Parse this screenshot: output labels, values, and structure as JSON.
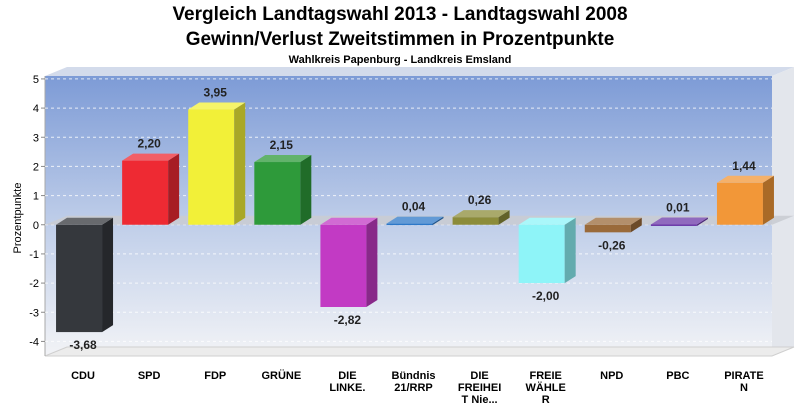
{
  "chart_data": {
    "type": "bar",
    "title": "Vergleich Landtagswahl 2013 - Landtagswahl 2008",
    "title2": "Gewinn/Verlust Zweitstimmen in Prozentpunkte",
    "subtitle": "Wahlkreis Papenburg - Landkreis Emsland",
    "ylabel": "Prozentpunkte",
    "xlabel": "",
    "ylim": [
      -4.5,
      5.1
    ],
    "yticks": [
      5,
      4,
      3,
      2,
      1,
      0,
      -1,
      -2,
      -3,
      -4
    ],
    "grid": true,
    "categories": [
      "CDU",
      "SPD",
      "FDP",
      "GRÜNE",
      "DIE LINKE.",
      "Bündnis 21/RRP",
      "DIE FREIHEIT Nie...",
      "FREIE WÄHLER",
      "NPD",
      "PBC",
      "PIRATEN"
    ],
    "category_label_lines": [
      [
        "CDU"
      ],
      [
        "SPD"
      ],
      [
        "FDP"
      ],
      [
        "GRÜNE"
      ],
      [
        "DIE",
        "LINKE."
      ],
      [
        "Bündnis",
        "21/RRP"
      ],
      [
        "DIE",
        "FREIHEI",
        "T Nie..."
      ],
      [
        "FREIE",
        "WÄHLE",
        "R"
      ],
      [
        "NPD"
      ],
      [
        "PBC"
      ],
      [
        "PIRATE",
        "N"
      ]
    ],
    "values": [
      -3.68,
      2.2,
      3.95,
      2.15,
      -2.82,
      0.04,
      0.26,
      -2.0,
      -0.26,
      0.01,
      1.44
    ],
    "value_labels": [
      "-3,68",
      "2,20",
      "3,95",
      "2,15",
      "-2,82",
      "0,04",
      "0,26",
      "-2,00",
      "-0,26",
      "0,01",
      "1,44"
    ],
    "colors": [
      "#35383d",
      "#ee2a33",
      "#f2f038",
      "#2e9a3a",
      "#c23ac4",
      "#2d78c8",
      "#8c8c3a",
      "#8ef4f8",
      "#9a6a3a",
      "#6b38a8",
      "#f29738"
    ]
  }
}
